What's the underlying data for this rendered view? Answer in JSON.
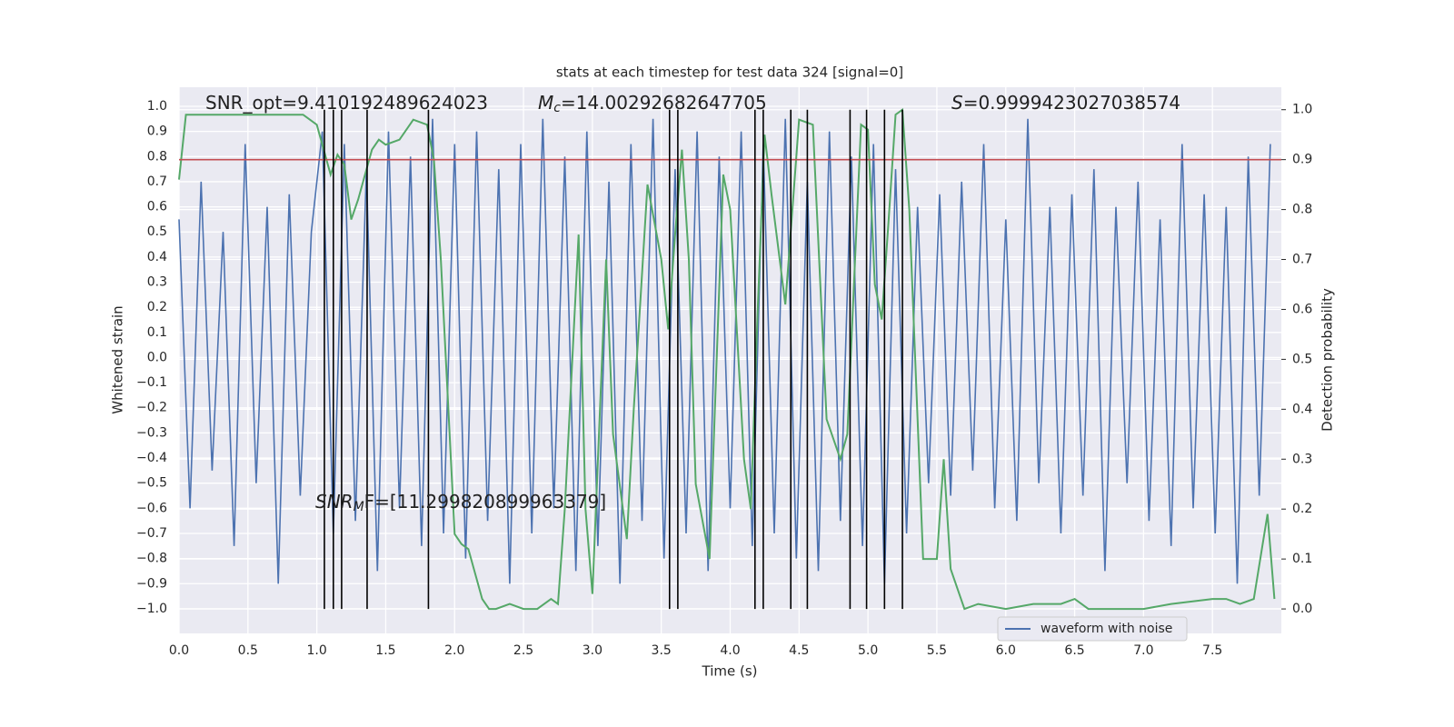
{
  "chart_data": {
    "type": "line",
    "title": "stats at each timestep for test data 324 [signal=0]",
    "xlabel": "Time (s)",
    "ylabel": "Whitened strain",
    "y2label": "Detection probability",
    "xlim": [
      0,
      8.0
    ],
    "ylim": [
      -1.098,
      1.076
    ],
    "y2lim": [
      -0.049,
      1.045
    ],
    "grid": true,
    "legend": "lower right",
    "xticks": [
      {
        "value": 0,
        "label": "0.0"
      },
      0.5,
      {
        "value": 1,
        "label": "1.0"
      },
      1.5,
      {
        "value": 2,
        "label": "2.0"
      },
      2.5,
      {
        "value": 3,
        "label": "3.0"
      },
      3.5,
      {
        "value": 4,
        "label": "4.0"
      },
      4.5,
      {
        "value": 5,
        "label": "5.0"
      },
      5.5,
      {
        "value": 6,
        "label": "6.0"
      },
      6.5,
      {
        "value": 7,
        "label": "7.0"
      },
      7.5
    ],
    "yticks": [
      {
        "value": -1,
        "label": "−1.0"
      },
      {
        "value": -0.9,
        "label": "−0.9"
      },
      {
        "value": -0.8,
        "label": "−0.8"
      },
      {
        "value": -0.7,
        "label": "−0.7"
      },
      {
        "value": -0.6,
        "label": "−0.6"
      },
      {
        "value": -0.5,
        "label": "−0.5"
      },
      {
        "value": -0.4,
        "label": "−0.4"
      },
      {
        "value": -0.3,
        "label": "−0.3"
      },
      {
        "value": -0.2,
        "label": "−0.2"
      },
      {
        "value": -0.1,
        "label": "−0.1"
      },
      {
        "value": 0,
        "label": "0.0"
      },
      0.1,
      0.2,
      0.3,
      0.4,
      0.5,
      0.6,
      0.7,
      0.8,
      0.9,
      {
        "value": 1,
        "label": "1.0"
      }
    ],
    "y2ticks": [
      {
        "value": 0,
        "label": "0.0"
      },
      0.1,
      0.2,
      0.3,
      0.4,
      0.5,
      0.6,
      0.7,
      0.8,
      0.9,
      {
        "value": 1,
        "label": "1.0"
      }
    ],
    "series": [
      {
        "name": "waveform with noise",
        "color": "#4c72b0",
        "x": [
          0,
          0.08,
          0.16,
          0.24,
          0.32,
          0.4,
          0.48,
          0.56,
          0.64,
          0.72,
          0.8,
          0.88,
          0.96,
          1.04,
          1.12,
          1.2,
          1.28,
          1.36,
          1.44,
          1.52,
          1.6,
          1.68,
          1.76,
          1.84,
          1.92,
          2,
          2.08,
          2.16,
          2.24,
          2.32,
          2.4,
          2.48,
          2.56,
          2.64,
          2.72,
          2.8,
          2.88,
          2.96,
          3.04,
          3.12,
          3.2,
          3.28,
          3.36,
          3.44,
          3.52,
          3.6,
          3.68,
          3.76,
          3.84,
          3.92,
          4,
          4.08,
          4.16,
          4.24,
          4.32,
          4.4,
          4.48,
          4.56,
          4.64,
          4.72,
          4.8,
          4.88,
          4.96,
          5.04,
          5.12,
          5.2,
          5.28,
          5.36,
          5.44,
          5.52,
          5.6,
          5.68,
          5.76,
          5.84,
          5.92,
          6,
          6.08,
          6.16,
          6.24,
          6.32,
          6.4,
          6.48,
          6.56,
          6.64,
          6.72,
          6.8,
          6.88,
          6.96,
          7.04,
          7.12,
          7.2,
          7.28,
          7.36,
          7.44,
          7.52,
          7.6,
          7.68,
          7.76,
          7.84,
          7.92
        ],
        "values": [
          0.55,
          -0.6,
          0.7,
          -0.45,
          0.5,
          -0.75,
          0.85,
          -0.5,
          0.6,
          -0.9,
          0.65,
          -0.55,
          0.5,
          0.9,
          -0.7,
          0.85,
          -0.65,
          0.75,
          -0.85,
          0.9,
          -0.6,
          0.8,
          -0.75,
          0.95,
          -0.7,
          0.85,
          -0.8,
          0.9,
          -0.65,
          0.75,
          -0.9,
          0.85,
          -0.7,
          0.95,
          -0.6,
          0.8,
          -0.85,
          0.9,
          -0.75,
          0.7,
          -0.9,
          0.85,
          -0.65,
          0.95,
          -0.8,
          0.75,
          -0.7,
          0.9,
          -0.85,
          0.8,
          -0.6,
          0.9,
          -0.75,
          0.85,
          -0.7,
          0.95,
          -0.8,
          0.7,
          -0.85,
          0.9,
          -0.65,
          0.8,
          -0.75,
          0.85,
          -0.9,
          0.75,
          -0.7,
          0.6,
          -0.5,
          0.65,
          -0.55,
          0.7,
          -0.45,
          0.85,
          -0.6,
          0.55,
          -0.65,
          0.95,
          -0.5,
          0.6,
          -0.7,
          0.65,
          -0.55,
          0.75,
          -0.85,
          0.6,
          -0.5,
          0.7,
          -0.65,
          0.55,
          -0.75,
          0.85,
          -0.6,
          0.65,
          -0.7,
          0.6,
          -0.9,
          0.8,
          -0.55,
          0.85
        ]
      },
      {
        "color": "#55a868",
        "axis": "y2",
        "x": [
          0,
          0.05,
          0.1,
          0.3,
          0.6,
          0.9,
          1.0,
          1.05,
          1.1,
          1.15,
          1.2,
          1.25,
          1.3,
          1.35,
          1.4,
          1.45,
          1.5,
          1.6,
          1.7,
          1.8,
          1.85,
          1.9,
          2.0,
          2.05,
          2.1,
          2.2,
          2.25,
          2.3,
          2.4,
          2.5,
          2.6,
          2.7,
          2.75,
          2.8,
          2.9,
          2.95,
          3.0,
          3.1,
          3.15,
          3.25,
          3.3,
          3.4,
          3.5,
          3.55,
          3.6,
          3.65,
          3.7,
          3.75,
          3.85,
          3.95,
          4.0,
          4.1,
          4.15,
          4.2,
          4.25,
          4.3,
          4.4,
          4.5,
          4.6,
          4.7,
          4.8,
          4.85,
          4.95,
          5.0,
          5.05,
          5.1,
          5.15,
          5.2,
          5.25,
          5.3,
          5.4,
          5.5,
          5.55,
          5.6,
          5.7,
          5.8,
          6.0,
          6.2,
          6.4,
          6.5,
          6.6,
          7.0,
          7.2,
          7.5,
          7.6,
          7.7,
          7.8,
          7.9,
          7.95
        ],
        "values": [
          0.86,
          0.99,
          0.99,
          0.99,
          0.99,
          0.99,
          0.97,
          0.92,
          0.87,
          0.91,
          0.89,
          0.78,
          0.82,
          0.87,
          0.92,
          0.94,
          0.93,
          0.94,
          0.98,
          0.97,
          0.9,
          0.7,
          0.15,
          0.13,
          0.12,
          0.02,
          0,
          0,
          0.01,
          0,
          0,
          0.02,
          0.01,
          0.2,
          0.75,
          0.2,
          0.03,
          0.7,
          0.35,
          0.14,
          0.4,
          0.85,
          0.7,
          0.56,
          0.75,
          0.92,
          0.7,
          0.25,
          0.1,
          0.87,
          0.8,
          0.3,
          0.2,
          0.6,
          0.95,
          0.83,
          0.61,
          0.98,
          0.97,
          0.38,
          0.3,
          0.35,
          0.97,
          0.96,
          0.65,
          0.58,
          0.78,
          0.99,
          1.0,
          0.8,
          0.1,
          0.1,
          0.3,
          0.08,
          0,
          0.01,
          0,
          0.01,
          0.01,
          0.02,
          0,
          0,
          0.01,
          0.02,
          0.02,
          0.01,
          0.02,
          0.19,
          0.02
        ]
      }
    ],
    "threshold": {
      "value": 0.9,
      "axis": "y2",
      "color": "#c44e52"
    },
    "vlines": {
      "x": [
        1.055,
        1.12,
        1.18,
        1.365,
        1.81,
        3.56,
        3.62,
        4.18,
        4.24,
        4.44,
        4.56,
        4.87,
        4.99,
        5.12,
        5.25
      ],
      "ymin": 0,
      "ymax": 1,
      "axis": "y2",
      "color": "#000000"
    },
    "annotations": [
      {
        "runs": [
          {
            "t": "SNR_opt=9.410192489624023"
          }
        ]
      },
      {
        "runs": [
          {
            "t": "M",
            "style": "italic"
          },
          {
            "t": "c",
            "style": "sub"
          },
          {
            "t": "=14.00292682647705"
          }
        ]
      },
      {
        "runs": [
          {
            "t": "S",
            "style": "italic"
          },
          {
            "t": "=0.9999423027038574"
          }
        ]
      },
      {
        "runs": [
          {
            "t": "SNR",
            "style": "italic"
          },
          {
            "t": "M",
            "style": "sub"
          },
          {
            "t": "F=[11.299820899963379]"
          }
        ]
      }
    ]
  }
}
